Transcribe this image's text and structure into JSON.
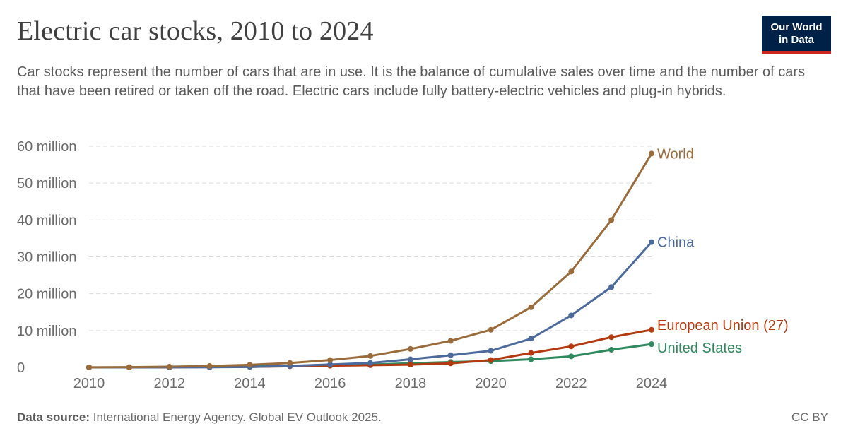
{
  "header": {
    "title": "Electric car stocks, 2010 to 2024",
    "subtitle": "Car stocks represent the number of cars that are in use. It is the balance of cumulative sales over time and the number of cars that have been retired or taken off the road. Electric cars include fully battery-electric vehicles and plug-in hybrids."
  },
  "logo": {
    "line1": "Our World",
    "line2": "in Data"
  },
  "footer": {
    "source_label": "Data source:",
    "source_text": "International Energy Agency. Global EV Outlook 2025.",
    "license": "CC BY"
  },
  "chart_data": {
    "type": "line",
    "title": "Electric car stocks, 2010 to 2024",
    "xlabel": "",
    "ylabel": "",
    "xlim": [
      2010,
      2024
    ],
    "ylim": [
      0,
      60000000
    ],
    "grid": true,
    "x": [
      2010,
      2011,
      2012,
      2013,
      2014,
      2015,
      2016,
      2017,
      2018,
      2019,
      2020,
      2021,
      2022,
      2023,
      2024
    ],
    "x_tick_labels": [
      "2010",
      "2012",
      "2014",
      "2016",
      "2018",
      "2020",
      "2022",
      "2024"
    ],
    "x_tick_values": [
      2010,
      2012,
      2014,
      2016,
      2018,
      2020,
      2022,
      2024
    ],
    "y_tick_values": [
      0,
      10000000,
      20000000,
      30000000,
      40000000,
      50000000,
      60000000
    ],
    "y_tick_labels": [
      "0",
      "10 million",
      "20 million",
      "30 million",
      "40 million",
      "50 million",
      "60 million"
    ],
    "series": [
      {
        "name": "World",
        "color": "#9a6b3b",
        "values": [
          20000,
          70000,
          180000,
          380000,
          700000,
          1200000,
          2000000,
          3100000,
          5000000,
          7200000,
          10200000,
          16300000,
          26000000,
          40000000,
          58000000
        ]
      },
      {
        "name": "China",
        "color": "#4c6a9c",
        "values": [
          1000,
          6000,
          20000,
          40000,
          130000,
          400000,
          800000,
          1200000,
          2200000,
          3300000,
          4500000,
          7800000,
          14100000,
          21800000,
          34000000
        ]
      },
      {
        "name": "European Union (27)",
        "color": "#b33a10",
        "values": [
          3000,
          10000,
          30000,
          70000,
          150000,
          300000,
          450000,
          600000,
          750000,
          1100000,
          2000000,
          3900000,
          5700000,
          8200000,
          10200000
        ]
      },
      {
        "name": "United States",
        "color": "#2f8a5f",
        "values": [
          1000,
          20000,
          70000,
          170000,
          290000,
          400000,
          570000,
          760000,
          1120000,
          1450000,
          1700000,
          2200000,
          3000000,
          4800000,
          6300000
        ]
      }
    ]
  }
}
